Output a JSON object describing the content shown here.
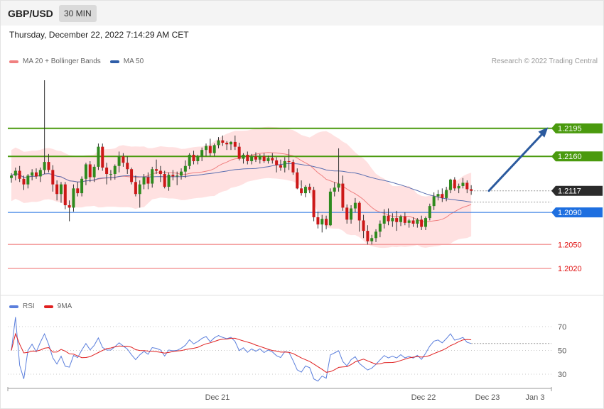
{
  "header": {
    "symbol": "GBP/USD",
    "timeframe": "30 MIN"
  },
  "timestamp": "Thursday, December 22, 2022 7:14:29 AM CET",
  "legend_main": [
    {
      "label": "MA 20 + Bollinger Bands",
      "color": "#f08080"
    },
    {
      "label": "MA 50",
      "color": "#2e5da8"
    }
  ],
  "credit": "Research © 2022 Trading Central",
  "legend_rsi": [
    {
      "label": "RSI",
      "color": "#5b7fdc"
    },
    {
      "label": "9MA",
      "color": "#e02020"
    }
  ],
  "chart_data": [
    {
      "type": "candlestick",
      "title": "",
      "series_names": [
        "MA 20 + Bollinger Bands",
        "MA 50"
      ],
      "x_ticks": [
        "Dec 21",
        "Dec 22",
        "Dec 23",
        "Jan 3"
      ],
      "price_levels": [
        {
          "value": 1.2195,
          "label": "1.2195",
          "style": "resistance",
          "color": "#4a9a0e"
        },
        {
          "value": 1.216,
          "label": "1.2160",
          "style": "resistance",
          "color": "#4a9a0e"
        },
        {
          "value": 1.2117,
          "label": "1.2117",
          "style": "last",
          "color": "#2b2b2b"
        },
        {
          "value": 1.209,
          "label": "1.2090",
          "style": "pivot",
          "color": "#1e6fe0"
        },
        {
          "value": 1.205,
          "label": "1.2050",
          "style": "support",
          "color": "#e01010"
        },
        {
          "value": 1.202,
          "label": "1.2020",
          "style": "support",
          "color": "#e01010"
        }
      ],
      "y_range": [
        1.199,
        1.2263
      ],
      "last_price": 1.2117,
      "forecast_arrow": {
        "from": 1.2117,
        "to": 1.2195
      },
      "candles": [
        [
          1.2133,
          1.2139,
          1.2127,
          1.2136
        ],
        [
          1.2136,
          1.2146,
          1.213,
          1.2142
        ],
        [
          1.2142,
          1.2148,
          1.2128,
          1.2132
        ],
        [
          1.2132,
          1.2136,
          1.2118,
          1.2125
        ],
        [
          1.2125,
          1.2138,
          1.212,
          1.2136
        ],
        [
          1.2136,
          1.2144,
          1.213,
          1.214
        ],
        [
          1.214,
          1.2145,
          1.2132,
          1.2135
        ],
        [
          1.2135,
          1.2146,
          1.2128,
          1.2143
        ],
        [
          1.2143,
          1.2255,
          1.2138,
          1.2153
        ],
        [
          1.2153,
          1.2163,
          1.214,
          1.2143
        ],
        [
          1.2143,
          1.2149,
          1.2116,
          1.2125
        ],
        [
          1.2125,
          1.213,
          1.2105,
          1.2113
        ],
        [
          1.2113,
          1.2128,
          1.2102,
          1.2125
        ],
        [
          1.2125,
          1.2128,
          1.2094,
          1.2099
        ],
        [
          1.2099,
          1.2105,
          1.2079,
          1.2096
        ],
        [
          1.2096,
          1.2125,
          1.2091,
          1.212
        ],
        [
          1.212,
          1.2128,
          1.211,
          1.2114
        ],
        [
          1.2114,
          1.2135,
          1.211,
          1.2132
        ],
        [
          1.2132,
          1.2152,
          1.2124,
          1.215
        ],
        [
          1.215,
          1.2154,
          1.2128,
          1.2134
        ],
        [
          1.2134,
          1.215,
          1.2128,
          1.2147
        ],
        [
          1.2147,
          1.2176,
          1.2143,
          1.2172
        ],
        [
          1.2172,
          1.2176,
          1.2142,
          1.2146
        ],
        [
          1.2146,
          1.2152,
          1.2125,
          1.2138
        ],
        [
          1.2138,
          1.2143,
          1.213,
          1.2138
        ],
        [
          1.2138,
          1.215,
          1.2131,
          1.2148
        ],
        [
          1.2148,
          1.2166,
          1.214,
          1.216
        ],
        [
          1.216,
          1.2164,
          1.2147,
          1.2152
        ],
        [
          1.2152,
          1.216,
          1.2138,
          1.2144
        ],
        [
          1.2144,
          1.2146,
          1.2125,
          1.2128
        ],
        [
          1.2128,
          1.2136,
          1.211,
          1.2113
        ],
        [
          1.2113,
          1.213,
          1.2096,
          1.2125
        ],
        [
          1.2125,
          1.2138,
          1.2119,
          1.2134
        ],
        [
          1.2134,
          1.214,
          1.2119,
          1.2126
        ],
        [
          1.2126,
          1.2147,
          1.2121,
          1.2144
        ],
        [
          1.2144,
          1.2156,
          1.2138,
          1.2142
        ],
        [
          1.2142,
          1.2148,
          1.2128,
          1.2138
        ],
        [
          1.2138,
          1.2142,
          1.212,
          1.2122
        ],
        [
          1.2122,
          1.214,
          1.2117,
          1.2137
        ],
        [
          1.2137,
          1.2143,
          1.213,
          1.2135
        ],
        [
          1.2135,
          1.2141,
          1.2124,
          1.2136
        ],
        [
          1.2136,
          1.2145,
          1.2131,
          1.2141
        ],
        [
          1.2141,
          1.2155,
          1.2133,
          1.2148
        ],
        [
          1.2148,
          1.2164,
          1.2144,
          1.2162
        ],
        [
          1.2162,
          1.2167,
          1.215,
          1.2154
        ],
        [
          1.2154,
          1.2162,
          1.215,
          1.216
        ],
        [
          1.216,
          1.2171,
          1.2154,
          1.2168
        ],
        [
          1.2168,
          1.2176,
          1.216,
          1.2173
        ],
        [
          1.2173,
          1.2182,
          1.216,
          1.2164
        ],
        [
          1.2164,
          1.2176,
          1.216,
          1.2174
        ],
        [
          1.2174,
          1.2184,
          1.217,
          1.218
        ],
        [
          1.218,
          1.2186,
          1.2173,
          1.2177
        ],
        [
          1.2177,
          1.2179,
          1.2168,
          1.2175
        ],
        [
          1.2175,
          1.2179,
          1.2168,
          1.2178
        ],
        [
          1.2178,
          1.2186,
          1.2168,
          1.2172
        ],
        [
          1.2172,
          1.2177,
          1.2155,
          1.2157
        ],
        [
          1.2157,
          1.2164,
          1.2151,
          1.2162
        ],
        [
          1.2162,
          1.2166,
          1.215,
          1.2154
        ],
        [
          1.2154,
          1.2163,
          1.215,
          1.216
        ],
        [
          1.216,
          1.2165,
          1.2153,
          1.2156
        ],
        [
          1.2156,
          1.2163,
          1.2151,
          1.216
        ],
        [
          1.216,
          1.2164,
          1.2152,
          1.2154
        ],
        [
          1.2154,
          1.2161,
          1.2151,
          1.2158
        ],
        [
          1.2158,
          1.2164,
          1.2151,
          1.2155
        ],
        [
          1.2155,
          1.2159,
          1.214,
          1.2149
        ],
        [
          1.2149,
          1.2156,
          1.2142,
          1.2146
        ],
        [
          1.2146,
          1.2159,
          1.214,
          1.2154
        ],
        [
          1.2154,
          1.2169,
          1.2143,
          1.2153
        ],
        [
          1.2153,
          1.2156,
          1.2137,
          1.214
        ],
        [
          1.214,
          1.2145,
          1.2119,
          1.212
        ],
        [
          1.212,
          1.213,
          1.2111,
          1.2114
        ],
        [
          1.2114,
          1.2124,
          1.2109,
          1.2122
        ],
        [
          1.2122,
          1.2126,
          1.2114,
          1.2118
        ],
        [
          1.2118,
          1.2122,
          1.2079,
          1.2084
        ],
        [
          1.2084,
          1.2091,
          1.207,
          1.2075
        ],
        [
          1.2075,
          1.2087,
          1.2065,
          1.2082
        ],
        [
          1.2082,
          1.2086,
          1.2069,
          1.2074
        ],
        [
          1.2074,
          1.212,
          1.2073,
          1.2116
        ],
        [
          1.2116,
          1.2128,
          1.211,
          1.2121
        ],
        [
          1.2121,
          1.217,
          1.2116,
          1.2126
        ],
        [
          1.2126,
          1.2136,
          1.2092,
          1.2096
        ],
        [
          1.2096,
          1.21,
          1.2076,
          1.2081
        ],
        [
          1.2081,
          1.2099,
          1.2076,
          1.2095
        ],
        [
          1.2095,
          1.2108,
          1.209,
          1.2102
        ],
        [
          1.2102,
          1.2104,
          1.2066,
          1.208
        ],
        [
          1.208,
          1.2087,
          1.2058,
          1.2067
        ],
        [
          1.2067,
          1.2074,
          1.205,
          1.2054
        ],
        [
          1.2054,
          1.2062,
          1.205,
          1.2058
        ],
        [
          1.2058,
          1.2069,
          1.2053,
          1.2066
        ],
        [
          1.2066,
          1.208,
          1.2059,
          1.2076
        ],
        [
          1.2076,
          1.2094,
          1.207,
          1.2086
        ],
        [
          1.2086,
          1.2095,
          1.2074,
          1.2079
        ],
        [
          1.2079,
          1.2089,
          1.2072,
          1.2083
        ],
        [
          1.2083,
          1.2092,
          1.2067,
          1.2078
        ],
        [
          1.2078,
          1.2087,
          1.2073,
          1.2085
        ],
        [
          1.2085,
          1.209,
          1.2074,
          1.2077
        ],
        [
          1.2077,
          1.2082,
          1.2071,
          1.208
        ],
        [
          1.208,
          1.2084,
          1.2072,
          1.2076
        ],
        [
          1.2076,
          1.2083,
          1.2071,
          1.2081
        ],
        [
          1.2081,
          1.2086,
          1.2068,
          1.2072
        ],
        [
          1.2072,
          1.2085,
          1.2068,
          1.2083
        ],
        [
          1.2083,
          1.2101,
          1.208,
          1.2098
        ],
        [
          1.2098,
          1.2115,
          1.2093,
          1.211
        ],
        [
          1.211,
          1.2118,
          1.2105,
          1.2113
        ],
        [
          1.2113,
          1.212,
          1.2103,
          1.2108
        ],
        [
          1.2108,
          1.2122,
          1.2104,
          1.2118
        ],
        [
          1.2118,
          1.2132,
          1.2114,
          1.2131
        ],
        [
          1.2131,
          1.2134,
          1.2117,
          1.212
        ],
        [
          1.212,
          1.2126,
          1.2114,
          1.2123
        ],
        [
          1.2123,
          1.2133,
          1.212,
          1.2127
        ],
        [
          1.2127,
          1.213,
          1.2114,
          1.2119
        ],
        [
          1.2119,
          1.2124,
          1.2112,
          1.2117
        ]
      ]
    },
    {
      "type": "line",
      "title": "",
      "series_names": [
        "RSI",
        "9MA"
      ],
      "y_ticks": [
        70,
        50,
        30
      ],
      "x_ticks": [
        "Dec 21",
        "Dec 22",
        "Dec 23",
        "Jan 3"
      ]
    }
  ]
}
